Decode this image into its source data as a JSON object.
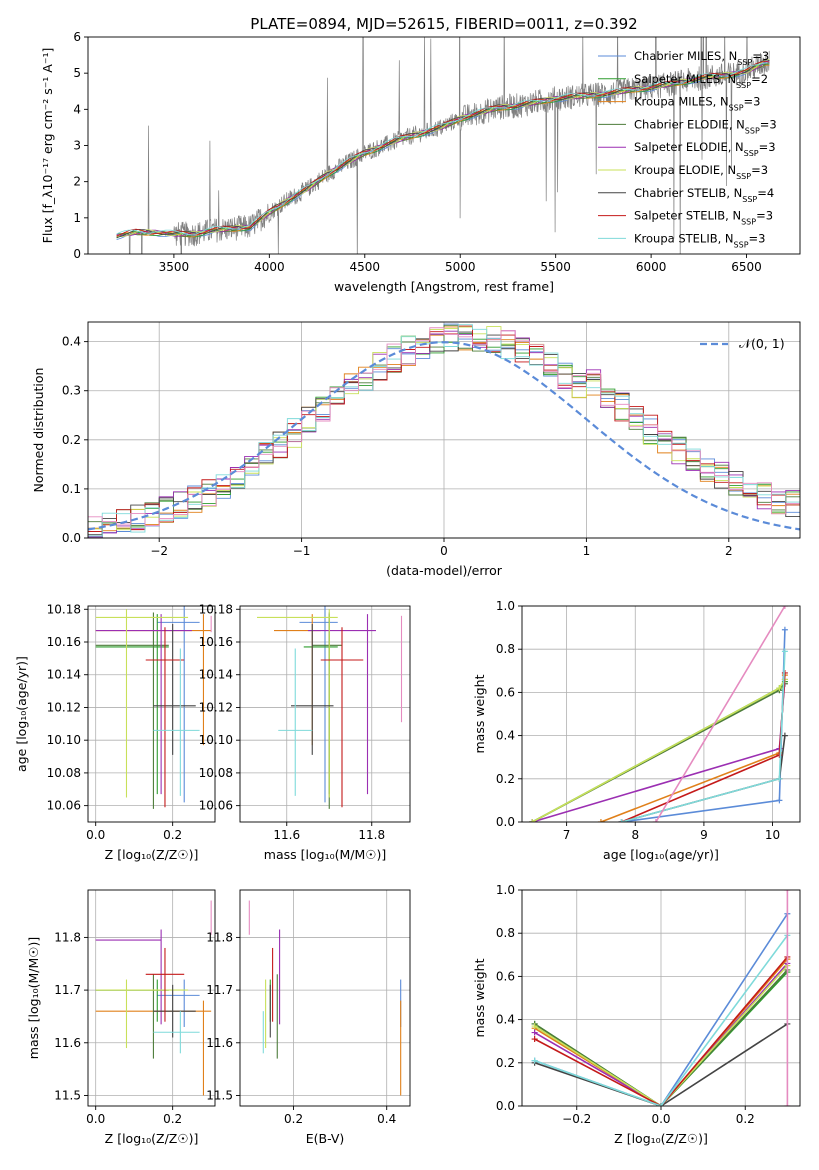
{
  "figure_title": "PLATE=0894, MJD=52615, FIBERID=0011, z=0.392",
  "models": [
    {
      "name": "Chabrier MILES",
      "nssp": "3",
      "color": "#5b8bd8"
    },
    {
      "name": "Salpeter MILES",
      "nssp": "2",
      "color": "#2e9c2e"
    },
    {
      "name": "Kroupa MILES",
      "nssp": "3",
      "color": "#e0801a"
    },
    {
      "name": "Chabrier ELODIE",
      "nssp": "3",
      "color": "#4d7c3a"
    },
    {
      "name": "Salpeter ELODIE",
      "nssp": "3",
      "color": "#9b2fb2"
    },
    {
      "name": "Kroupa ELODIE",
      "nssp": "3",
      "color": "#c8e05a"
    },
    {
      "name": "Chabrier STELIB",
      "nssp": "4",
      "color": "#444444"
    },
    {
      "name": "Salpeter STELIB",
      "nssp": "3",
      "color": "#c41a1a"
    },
    {
      "name": "Kroupa STELIB",
      "nssp": "3",
      "color": "#7fdada"
    }
  ],
  "extra_color": "#e58bc0",
  "chart_data": [
    {
      "id": "spectrum",
      "type": "line",
      "title": "PLATE=0894, MJD=52615, FIBERID=0011, z=0.392",
      "xlabel": "wavelength [Angstrom, rest frame]",
      "ylabel": "Flux [f_λ10⁻¹⁷ erg cm⁻² s⁻¹ A⁻¹]",
      "xlim": [
        3050,
        6780
      ],
      "ylim": [
        0,
        6
      ],
      "xticks": [
        3500,
        4000,
        4500,
        5000,
        5500,
        6000,
        6500
      ],
      "yticks": [
        0,
        1,
        2,
        3,
        4,
        5,
        6
      ],
      "legend": "upper-right",
      "model_curve": {
        "x": [
          3200,
          3300,
          3400,
          3500,
          3600,
          3700,
          3800,
          3900,
          4000,
          4100,
          4200,
          4300,
          4400,
          4500,
          4600,
          4700,
          4800,
          4900,
          5000,
          5100,
          5200,
          5300,
          5400,
          5500,
          5600,
          5700,
          5800,
          5900,
          6000,
          6100,
          6200,
          6300,
          6400,
          6500,
          6600
        ],
        "y": [
          0.5,
          0.6,
          0.6,
          0.55,
          0.55,
          0.65,
          0.7,
          0.75,
          1.15,
          1.5,
          1.8,
          2.2,
          2.5,
          2.8,
          3.0,
          3.2,
          3.35,
          3.5,
          3.75,
          3.9,
          4.05,
          4.1,
          4.2,
          4.3,
          4.35,
          4.4,
          4.45,
          4.55,
          4.6,
          4.7,
          4.8,
          4.9,
          4.95,
          5.05,
          5.3
        ]
      }
    },
    {
      "id": "residual-hist",
      "type": "histogram",
      "xlabel": "(data-model)/error",
      "ylabel": "Normed distribution",
      "xlim": [
        -2.5,
        2.5
      ],
      "ylim": [
        0,
        0.44
      ],
      "xticks": [
        -2,
        -1,
        0,
        1,
        2
      ],
      "yticks": [
        0,
        0.1,
        0.2,
        0.3,
        0.4
      ],
      "reference_label": "𝒩(0, 1)",
      "bins": 50
    },
    {
      "id": "age-vs-z",
      "type": "errorbar",
      "xlabel": "Z [log₁₀(Z/Z☉)]",
      "ylabel": "age  [log₁₀(age/yr)]",
      "xlim": [
        -0.02,
        0.31
      ],
      "ylim": [
        10.05,
        10.182
      ],
      "xticks": [
        0.0,
        0.2
      ],
      "yticks": [
        10.06,
        10.08,
        10.1,
        10.12,
        10.14,
        10.16,
        10.18
      ],
      "points": [
        {
          "m": 0,
          "x": 0.23,
          "y": 10.172,
          "xerr": [
            0.07,
            0.04
          ],
          "yerr": [
            0.11,
            0.01
          ]
        },
        {
          "m": 1,
          "x": 0.16,
          "y": 10.157,
          "xerr": [
            0.16,
            0.03
          ],
          "yerr": [
            0.09,
            0.02
          ]
        },
        {
          "m": 2,
          "x": 0.28,
          "y": 10.167,
          "xerr": [
            0.28,
            0.02
          ],
          "yerr": [
            0.07,
            0.01
          ]
        },
        {
          "m": 3,
          "x": 0.15,
          "y": 10.158,
          "xerr": [
            0.15,
            0.04
          ],
          "yerr": [
            0.1,
            0.02
          ]
        },
        {
          "m": 4,
          "x": 0.17,
          "y": 10.167,
          "xerr": [
            0.17,
            0.08
          ],
          "yerr": [
            0.1,
            0.01
          ]
        },
        {
          "m": 5,
          "x": 0.08,
          "y": 10.175,
          "xerr": [
            0.08,
            0.16
          ],
          "yerr": [
            0.11,
            0.005
          ]
        },
        {
          "m": 6,
          "x": 0.2,
          "y": 10.121,
          "xerr": [
            0.05,
            0.06
          ],
          "yerr": [
            0.03,
            0.05
          ]
        },
        {
          "m": 7,
          "x": 0.18,
          "y": 10.149,
          "xerr": [
            0.05,
            0.05
          ],
          "yerr": [
            0.09,
            0.02
          ]
        },
        {
          "m": 8,
          "x": 0.22,
          "y": 10.106,
          "xerr": [
            0.07,
            0.05
          ],
          "yerr": [
            0.04,
            0.05
          ]
        },
        {
          "m": 9,
          "x": 0.3,
          "y": 10.176,
          "xerr": [
            0.0,
            0.0
          ],
          "yerr": [
            0.01,
            0.0
          ]
        }
      ]
    },
    {
      "id": "age-vs-mass",
      "type": "errorbar",
      "xlabel": "mass [log₁₀(M/M☉)]",
      "ylabel": "",
      "xlim": [
        11.49,
        11.89
      ],
      "ylim": [
        10.05,
        10.182
      ],
      "xticks": [
        11.6,
        11.8
      ],
      "yticks": [
        10.06,
        10.08,
        10.1,
        10.12,
        10.14,
        10.16,
        10.18
      ],
      "points": [
        {
          "m": 0,
          "x": 11.69,
          "y": 10.172,
          "xerr": [
            0.06,
            0.03
          ],
          "yerr": [
            0.11,
            0.01
          ]
        },
        {
          "m": 1,
          "x": 11.7,
          "y": 10.157,
          "xerr": [
            0.06,
            0.02
          ],
          "yerr": [
            0.09,
            0.02
          ]
        },
        {
          "m": 2,
          "x": 11.66,
          "y": 10.167,
          "xerr": [
            0.09,
            0.02
          ],
          "yerr": [
            0.07,
            0.01
          ]
        },
        {
          "m": 3,
          "x": 11.7,
          "y": 10.158,
          "xerr": [
            0.04,
            0.03
          ],
          "yerr": [
            0.1,
            0.02
          ]
        },
        {
          "m": 4,
          "x": 11.79,
          "y": 10.167,
          "xerr": [
            0.14,
            0.02
          ],
          "yerr": [
            0.1,
            0.01
          ]
        },
        {
          "m": 5,
          "x": 11.7,
          "y": 10.175,
          "xerr": [
            0.17,
            0.02
          ],
          "yerr": [
            0.11,
            0.005
          ]
        },
        {
          "m": 6,
          "x": 11.66,
          "y": 10.121,
          "xerr": [
            0.05,
            0.05
          ],
          "yerr": [
            0.03,
            0.05
          ]
        },
        {
          "m": 7,
          "x": 11.73,
          "y": 10.149,
          "xerr": [
            0.05,
            0.05
          ],
          "yerr": [
            0.09,
            0.02
          ]
        },
        {
          "m": 8,
          "x": 11.62,
          "y": 10.106,
          "xerr": [
            0.04,
            0.04
          ],
          "yerr": [
            0.04,
            0.05
          ]
        },
        {
          "m": 9,
          "x": 11.87,
          "y": 10.176,
          "xerr": [
            0.0,
            0.0
          ],
          "yerr": [
            0.065,
            0.0
          ]
        }
      ]
    },
    {
      "id": "weight-vs-age",
      "type": "line",
      "xlabel": "age  [log₁₀(age/yr)]",
      "ylabel": "mass weight",
      "xlim": [
        6.35,
        10.4
      ],
      "ylim": [
        0,
        1.0
      ],
      "xticks": [
        7,
        8,
        9,
        10
      ],
      "yticks": [
        0.0,
        0.2,
        0.4,
        0.6,
        0.8,
        1.0
      ],
      "series": [
        {
          "m": 0,
          "x": [
            7.8,
            10.1,
            10.18
          ],
          "y": [
            0.0,
            0.1,
            0.89
          ]
        },
        {
          "m": 1,
          "x": [
            6.5,
            10.1,
            10.18
          ],
          "y": [
            0.0,
            0.62,
            0.65
          ]
        },
        {
          "m": 2,
          "x": [
            7.5,
            10.1,
            10.18
          ],
          "y": [
            0.0,
            0.32,
            0.68
          ]
        },
        {
          "m": 3,
          "x": [
            6.5,
            10.1,
            10.18
          ],
          "y": [
            0.0,
            0.61,
            0.64
          ]
        },
        {
          "m": 4,
          "x": [
            6.5,
            10.1,
            10.18
          ],
          "y": [
            0.0,
            0.34,
            0.66
          ]
        },
        {
          "m": 5,
          "x": [
            6.5,
            10.1,
            10.18
          ],
          "y": [
            0.0,
            0.62,
            0.66
          ]
        },
        {
          "m": 6,
          "x": [
            7.8,
            10.1,
            10.18
          ],
          "y": [
            0.0,
            0.2,
            0.4
          ]
        },
        {
          "m": 7,
          "x": [
            7.8,
            10.1,
            10.18
          ],
          "y": [
            0.0,
            0.31,
            0.69
          ]
        },
        {
          "m": 8,
          "x": [
            7.8,
            10.1,
            10.18
          ],
          "y": [
            0.0,
            0.2,
            0.79
          ]
        },
        {
          "m": 9,
          "x": [
            8.3,
            10.18
          ],
          "y": [
            0.0,
            1.0
          ]
        }
      ]
    },
    {
      "id": "mass-vs-z",
      "type": "errorbar",
      "xlabel": "Z [log₁₀(Z/Z☉)]",
      "ylabel": "mass [log₁₀(M/M☉)]",
      "xlim": [
        -0.02,
        0.31
      ],
      "ylim": [
        11.48,
        11.89
      ],
      "xticks": [
        0.0,
        0.2
      ],
      "yticks": [
        11.5,
        11.6,
        11.7,
        11.8
      ],
      "points": [
        {
          "m": 0,
          "x": 0.23,
          "y": 11.69,
          "xerr": [
            0.07,
            0.04
          ],
          "yerr": [
            0.06,
            0.03
          ]
        },
        {
          "m": 1,
          "x": 0.16,
          "y": 11.7,
          "xerr": [
            0.16,
            0.03
          ],
          "yerr": [
            0.06,
            0.02
          ]
        },
        {
          "m": 2,
          "x": 0.28,
          "y": 11.66,
          "xerr": [
            0.28,
            0.02
          ],
          "yerr": [
            0.16,
            0.02
          ]
        },
        {
          "m": 3,
          "x": 0.15,
          "y": 11.7,
          "xerr": [
            0.15,
            0.04
          ],
          "yerr": [
            0.13,
            0.03
          ]
        },
        {
          "m": 4,
          "x": 0.17,
          "y": 11.795,
          "xerr": [
            0.17,
            0.0
          ],
          "yerr": [
            0.16,
            0.02
          ]
        },
        {
          "m": 5,
          "x": 0.08,
          "y": 11.7,
          "xerr": [
            0.08,
            0.16
          ],
          "yerr": [
            0.11,
            0.02
          ]
        },
        {
          "m": 6,
          "x": 0.2,
          "y": 11.66,
          "xerr": [
            0.05,
            0.06
          ],
          "yerr": [
            0.05,
            0.05
          ]
        },
        {
          "m": 7,
          "x": 0.18,
          "y": 11.73,
          "xerr": [
            0.05,
            0.05
          ],
          "yerr": [
            0.09,
            0.05
          ]
        },
        {
          "m": 8,
          "x": 0.22,
          "y": 11.62,
          "xerr": [
            0.07,
            0.05
          ],
          "yerr": [
            0.04,
            0.04
          ]
        },
        {
          "m": 9,
          "x": 0.3,
          "y": 11.87,
          "xerr": [
            0.0,
            0.0
          ],
          "yerr": [
            0.065,
            0.0
          ]
        }
      ]
    },
    {
      "id": "mass-vs-ebv",
      "type": "errorbar",
      "xlabel": "E(B-V)",
      "ylabel": "",
      "xlim": [
        0.085,
        0.45
      ],
      "ylim": [
        11.48,
        11.89
      ],
      "xticks": [
        0.2,
        0.4
      ],
      "yticks": [
        11.5,
        11.6,
        11.7,
        11.8
      ],
      "points": [
        {
          "m": 0,
          "x": 0.43,
          "y": 11.69,
          "yerr": [
            0.06,
            0.03
          ]
        },
        {
          "m": 1,
          "x": 0.15,
          "y": 11.7,
          "yerr": [
            0.06,
            0.02
          ]
        },
        {
          "m": 2,
          "x": 0.43,
          "y": 11.66,
          "yerr": [
            0.16,
            0.02
          ]
        },
        {
          "m": 3,
          "x": 0.165,
          "y": 11.7,
          "yerr": [
            0.13,
            0.03
          ]
        },
        {
          "m": 4,
          "x": 0.17,
          "y": 11.795,
          "yerr": [
            0.16,
            0.02
          ]
        },
        {
          "m": 5,
          "x": 0.14,
          "y": 11.7,
          "yerr": [
            0.11,
            0.02
          ]
        },
        {
          "m": 6,
          "x": 0.15,
          "y": 11.66,
          "yerr": [
            0.05,
            0.05
          ]
        },
        {
          "m": 7,
          "x": 0.155,
          "y": 11.73,
          "yerr": [
            0.09,
            0.05
          ]
        },
        {
          "m": 8,
          "x": 0.135,
          "y": 11.62,
          "yerr": [
            0.04,
            0.04
          ]
        },
        {
          "m": 9,
          "x": 0.105,
          "y": 11.87,
          "yerr": [
            0.065,
            0.0
          ]
        }
      ]
    },
    {
      "id": "weight-vs-z",
      "type": "line",
      "xlabel": "Z [log₁₀(Z/Z☉)]",
      "ylabel": "mass weight",
      "xlim": [
        -0.33,
        0.33
      ],
      "ylim": [
        0,
        1.0
      ],
      "xticks": [
        -0.2,
        0.0,
        0.2
      ],
      "yticks": [
        0.0,
        0.2,
        0.4,
        0.6,
        0.8,
        1.0
      ],
      "series": [
        {
          "m": 0,
          "x": [
            -0.3,
            0.0,
            0.3
          ],
          "y": [
            0.21,
            0.0,
            0.89
          ]
        },
        {
          "m": 1,
          "x": [
            -0.3,
            0.0,
            0.3
          ],
          "y": [
            0.38,
            0.0,
            0.62
          ]
        },
        {
          "m": 2,
          "x": [
            -0.3,
            0.0,
            0.3
          ],
          "y": [
            0.36,
            0.0,
            0.68
          ]
        },
        {
          "m": 3,
          "x": [
            -0.3,
            0.0,
            0.3
          ],
          "y": [
            0.38,
            0.0,
            0.63
          ]
        },
        {
          "m": 4,
          "x": [
            -0.3,
            0.0,
            0.3
          ],
          "y": [
            0.34,
            0.0,
            0.66
          ]
        },
        {
          "m": 5,
          "x": [
            -0.3,
            0.0,
            0.3
          ],
          "y": [
            0.37,
            0.0,
            0.65
          ]
        },
        {
          "m": 6,
          "x": [
            -0.3,
            0.0,
            0.3
          ],
          "y": [
            0.2,
            0.0,
            0.38
          ]
        },
        {
          "m": 7,
          "x": [
            -0.3,
            0.0,
            0.3
          ],
          "y": [
            0.31,
            0.0,
            0.69
          ]
        },
        {
          "m": 8,
          "x": [
            -0.3,
            0.0,
            0.3
          ],
          "y": [
            0.21,
            0.0,
            0.79
          ]
        },
        {
          "m": 9,
          "x": [
            0.3,
            0.3
          ],
          "y": [
            0.0,
            1.0
          ]
        }
      ]
    }
  ]
}
